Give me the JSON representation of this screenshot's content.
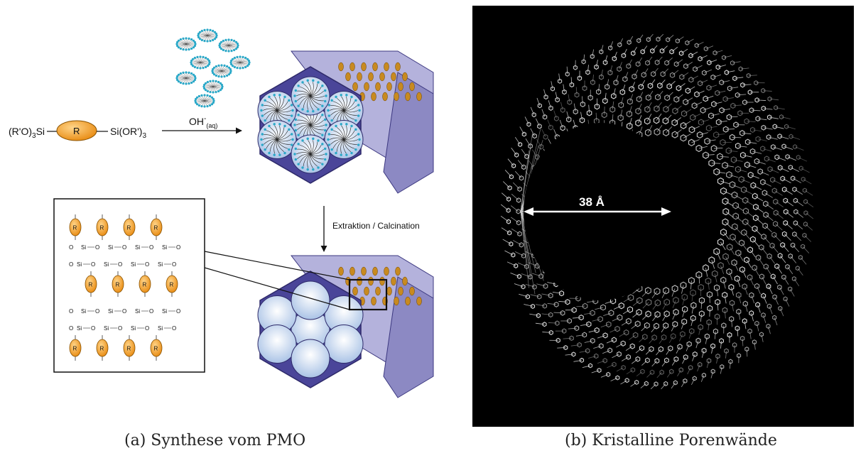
{
  "panel_a": {
    "precursor": {
      "left_group": "(R'O)",
      "left_sub": "3",
      "left_tail": "Si",
      "center": "R",
      "right_group": "Si(OR')",
      "right_sub": "3"
    },
    "reagent_main": "OH",
    "reagent_sup": "-",
    "reagent_sub": "(aq)",
    "step_label": "Extraktion / Calcination",
    "network": {
      "r_label": "R",
      "si_label": "Si",
      "o_label": "O"
    },
    "caption": "(a) Synthese vom PMO"
  },
  "panel_b": {
    "dimension_label": "38 Å",
    "caption": "(b) Kristalline Porenwände"
  },
  "colors": {
    "hex_face": "#4a4599",
    "hex_side": "#8c89c3",
    "hex_top": "#b4b2dc",
    "pore_fill": "#dce8f6",
    "organic": "#f0a020",
    "micelle": "#2aa8c8"
  }
}
